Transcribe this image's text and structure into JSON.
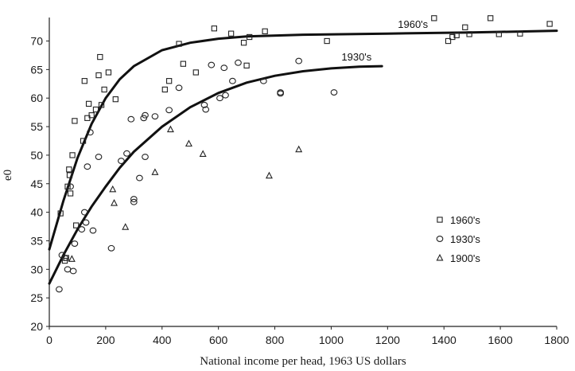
{
  "chart_data": {
    "type": "scatter",
    "title": "",
    "xlabel": "National income per head, 1963 US dollars",
    "ylabel": "e0",
    "xlim": [
      0,
      1800
    ],
    "ylim": [
      20,
      73
    ],
    "x_ticks": [
      0,
      200,
      400,
      600,
      800,
      1000,
      1200,
      1400,
      1600,
      1800
    ],
    "y_ticks": [
      20,
      25,
      30,
      35,
      40,
      45,
      50,
      55,
      60,
      65,
      70
    ],
    "grid": false,
    "legend_position": "right",
    "series": [
      {
        "name": "1960's",
        "marker": "square",
        "points": [
          [
            40,
            39.8
          ],
          [
            55,
            31.5
          ],
          [
            60,
            32
          ],
          [
            65,
            44.5
          ],
          [
            70,
            47.5
          ],
          [
            72,
            46.5
          ],
          [
            75,
            43.3
          ],
          [
            82,
            50
          ],
          [
            90,
            56
          ],
          [
            95,
            37.7
          ],
          [
            120,
            52.5
          ],
          [
            125,
            63
          ],
          [
            135,
            56.5
          ],
          [
            140,
            59
          ],
          [
            150,
            57
          ],
          [
            165,
            58
          ],
          [
            175,
            64
          ],
          [
            180,
            67.2
          ],
          [
            185,
            58.8
          ],
          [
            195,
            61.5
          ],
          [
            210,
            64.5
          ],
          [
            235,
            59.8
          ],
          [
            410,
            61.5
          ],
          [
            425,
            63
          ],
          [
            460,
            69.5
          ],
          [
            475,
            66
          ],
          [
            520,
            64.5
          ],
          [
            585,
            72.2
          ],
          [
            645,
            71.3
          ],
          [
            690,
            69.7
          ],
          [
            700,
            65.7
          ],
          [
            710,
            70.7
          ],
          [
            765,
            71.7
          ],
          [
            985,
            70
          ],
          [
            1365,
            74
          ],
          [
            1415,
            70
          ],
          [
            1430,
            70.7
          ],
          [
            1445,
            71
          ],
          [
            1475,
            72.4
          ],
          [
            1490,
            71.2
          ],
          [
            1565,
            74
          ],
          [
            1595,
            71.2
          ],
          [
            1670,
            71.3
          ],
          [
            1775,
            73
          ]
        ]
      },
      {
        "name": "1930's",
        "marker": "circle",
        "points": [
          [
            35,
            26.5
          ],
          [
            45,
            32.5
          ],
          [
            55,
            32
          ],
          [
            65,
            30
          ],
          [
            75,
            44.5
          ],
          [
            85,
            29.7
          ],
          [
            90,
            34.5
          ],
          [
            115,
            37
          ],
          [
            125,
            40
          ],
          [
            130,
            38.2
          ],
          [
            135,
            48
          ],
          [
            155,
            36.8
          ],
          [
            145,
            54
          ],
          [
            175,
            49.7
          ],
          [
            220,
            33.7
          ],
          [
            255,
            49
          ],
          [
            275,
            50.3
          ],
          [
            290,
            56.3
          ],
          [
            300,
            42.3
          ],
          [
            300,
            41.8
          ],
          [
            320,
            46
          ],
          [
            335,
            56.5
          ],
          [
            340,
            49.7
          ],
          [
            340,
            57
          ],
          [
            375,
            56.8
          ],
          [
            425,
            57.9
          ],
          [
            460,
            61.8
          ],
          [
            550,
            58.8
          ],
          [
            555,
            58
          ],
          [
            575,
            65.8
          ],
          [
            605,
            60
          ],
          [
            620,
            65.3
          ],
          [
            625,
            60.5
          ],
          [
            650,
            63
          ],
          [
            670,
            66.2
          ],
          [
            760,
            63
          ],
          [
            820,
            61
          ],
          [
            820,
            60.8
          ],
          [
            885,
            66.5
          ],
          [
            1010,
            61
          ]
        ]
      },
      {
        "name": "1900's",
        "marker": "triangle",
        "points": [
          [
            80,
            31.8
          ],
          [
            225,
            44
          ],
          [
            230,
            41.6
          ],
          [
            270,
            37.4
          ],
          [
            375,
            47
          ],
          [
            430,
            54.5
          ],
          [
            495,
            52
          ],
          [
            545,
            50.2
          ],
          [
            780,
            46.4
          ],
          [
            885,
            51
          ]
        ]
      }
    ],
    "curves": [
      {
        "label": "1960's",
        "points": [
          [
            0,
            33.5
          ],
          [
            50,
            42
          ],
          [
            100,
            49.5
          ],
          [
            150,
            55.5
          ],
          [
            200,
            60
          ],
          [
            250,
            63.3
          ],
          [
            300,
            65.6
          ],
          [
            400,
            68.4
          ],
          [
            500,
            69.7
          ],
          [
            600,
            70.4
          ],
          [
            700,
            70.8
          ],
          [
            900,
            71.1
          ],
          [
            1200,
            71.3
          ],
          [
            1500,
            71.5
          ],
          [
            1800,
            71.8
          ]
        ]
      },
      {
        "label": "1930's",
        "points": [
          [
            0,
            27.5
          ],
          [
            50,
            32.5
          ],
          [
            100,
            37
          ],
          [
            150,
            41
          ],
          [
            200,
            44.5
          ],
          [
            250,
            47.8
          ],
          [
            300,
            50.6
          ],
          [
            400,
            55
          ],
          [
            500,
            58.4
          ],
          [
            600,
            60.9
          ],
          [
            700,
            62.7
          ],
          [
            800,
            63.9
          ],
          [
            900,
            64.7
          ],
          [
            1000,
            65.2
          ],
          [
            1100,
            65.5
          ],
          [
            1180,
            65.6
          ]
        ]
      }
    ]
  }
}
